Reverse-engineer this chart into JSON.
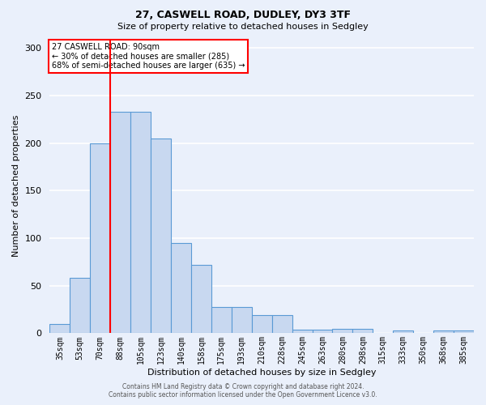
{
  "title1": "27, CASWELL ROAD, DUDLEY, DY3 3TF",
  "title2": "Size of property relative to detached houses in Sedgley",
  "xlabel": "Distribution of detached houses by size in Sedgley",
  "ylabel": "Number of detached properties",
  "categories": [
    "35sqm",
    "53sqm",
    "70sqm",
    "88sqm",
    "105sqm",
    "123sqm",
    "140sqm",
    "158sqm",
    "175sqm",
    "193sqm",
    "210sqm",
    "228sqm",
    "245sqm",
    "263sqm",
    "280sqm",
    "298sqm",
    "315sqm",
    "333sqm",
    "350sqm",
    "368sqm",
    "385sqm"
  ],
  "values": [
    10,
    58,
    200,
    233,
    233,
    205,
    95,
    72,
    28,
    28,
    19,
    19,
    4,
    4,
    5,
    5,
    0,
    3,
    0,
    3,
    3
  ],
  "bar_color": "#c8d8f0",
  "bar_edge_color": "#5a9ad5",
  "bg_color": "#eaf0fb",
  "grid_color": "#ffffff",
  "vline_x_index": 3,
  "vline_color": "red",
  "annotation_title": "27 CASWELL ROAD: 90sqm",
  "annotation_line2": "← 30% of detached houses are smaller (285)",
  "annotation_line3": "68% of semi-detached houses are larger (635) →",
  "annotation_box_color": "white",
  "annotation_box_edge": "red",
  "ylim": [
    0,
    310
  ],
  "yticks": [
    0,
    50,
    100,
    150,
    200,
    250,
    300
  ],
  "footer1": "Contains HM Land Registry data © Crown copyright and database right 2024.",
  "footer2": "Contains public sector information licensed under the Open Government Licence v3.0."
}
